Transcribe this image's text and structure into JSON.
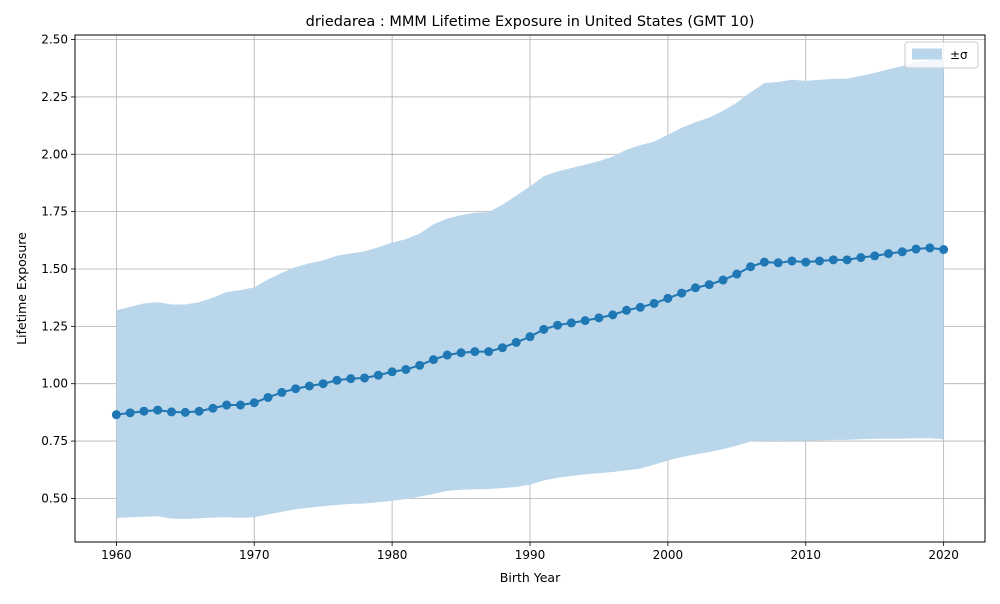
{
  "chart_data": {
    "type": "line",
    "title": "driedarea : MMM Lifetime Exposure in United States (GMT 10)",
    "xlabel": "Birth Year",
    "ylabel": "Lifetime Exposure",
    "xlim": [
      1957,
      2023
    ],
    "ylim": [
      0.31,
      2.52
    ],
    "xticks": [
      1960,
      1970,
      1980,
      1990,
      2000,
      2010,
      2020
    ],
    "xtick_labels": [
      "1960",
      "1970",
      "1980",
      "1990",
      "2000",
      "2010",
      "2020"
    ],
    "yticks": [
      0.5,
      0.75,
      1.0,
      1.25,
      1.5,
      1.75,
      2.0,
      2.25,
      2.5
    ],
    "ytick_labels": [
      "0.50",
      "0.75",
      "1.00",
      "1.25",
      "1.50",
      "1.75",
      "2.00",
      "2.25",
      "2.50"
    ],
    "grid": true,
    "legend": {
      "placement": "top-right",
      "entries": [
        "±σ"
      ]
    },
    "colors": {
      "line": "#1f77b4",
      "band": "#bad6ea",
      "grid": "#b0b0b0"
    },
    "x": [
      1960,
      1961,
      1962,
      1963,
      1964,
      1965,
      1966,
      1967,
      1968,
      1969,
      1970,
      1971,
      1972,
      1973,
      1974,
      1975,
      1976,
      1977,
      1978,
      1979,
      1980,
      1981,
      1982,
      1983,
      1984,
      1985,
      1986,
      1987,
      1988,
      1989,
      1990,
      1991,
      1992,
      1993,
      1994,
      1995,
      1996,
      1997,
      1998,
      1999,
      2000,
      2001,
      2002,
      2003,
      2004,
      2005,
      2006,
      2007,
      2008,
      2009,
      2010,
      2011,
      2012,
      2013,
      2014,
      2015,
      2016,
      2017,
      2018,
      2019,
      2020
    ],
    "series": [
      {
        "type": "line",
        "values": [
          0.865,
          0.873,
          0.88,
          0.885,
          0.877,
          0.875,
          0.88,
          0.893,
          0.907,
          0.907,
          0.917,
          0.94,
          0.962,
          0.978,
          0.99,
          1.0,
          1.015,
          1.022,
          1.025,
          1.037,
          1.052,
          1.062,
          1.08,
          1.105,
          1.125,
          1.135,
          1.14,
          1.14,
          1.157,
          1.18,
          1.205,
          1.237,
          1.255,
          1.265,
          1.275,
          1.287,
          1.3,
          1.32,
          1.333,
          1.35,
          1.372,
          1.395,
          1.418,
          1.432,
          1.452,
          1.478,
          1.51,
          1.53,
          1.527,
          1.535,
          1.53,
          1.535,
          1.54,
          1.54,
          1.55,
          1.557,
          1.567,
          1.575,
          1.587,
          1.592,
          1.585
        ]
      },
      {
        "type": "band",
        "name": "±σ",
        "upper": [
          1.32,
          1.335,
          1.35,
          1.355,
          1.345,
          1.345,
          1.355,
          1.375,
          1.4,
          1.408,
          1.42,
          1.455,
          1.483,
          1.508,
          1.525,
          1.538,
          1.558,
          1.568,
          1.577,
          1.595,
          1.615,
          1.63,
          1.655,
          1.695,
          1.72,
          1.735,
          1.745,
          1.748,
          1.78,
          1.82,
          1.86,
          1.905,
          1.925,
          1.94,
          1.955,
          1.97,
          1.99,
          2.02,
          2.04,
          2.055,
          2.085,
          2.115,
          2.14,
          2.16,
          2.19,
          2.225,
          2.27,
          2.31,
          2.315,
          2.325,
          2.32,
          2.325,
          2.328,
          2.33,
          2.342,
          2.355,
          2.37,
          2.385,
          2.4,
          2.41,
          2.42
        ],
        "lower": [
          0.415,
          0.418,
          0.42,
          0.422,
          0.412,
          0.41,
          0.413,
          0.416,
          0.418,
          0.415,
          0.418,
          0.43,
          0.442,
          0.453,
          0.46,
          0.466,
          0.472,
          0.476,
          0.478,
          0.483,
          0.49,
          0.497,
          0.507,
          0.52,
          0.533,
          0.538,
          0.54,
          0.541,
          0.545,
          0.55,
          0.56,
          0.578,
          0.59,
          0.598,
          0.605,
          0.61,
          0.615,
          0.622,
          0.63,
          0.647,
          0.665,
          0.68,
          0.692,
          0.702,
          0.715,
          0.73,
          0.748,
          0.752,
          0.75,
          0.752,
          0.752,
          0.753,
          0.755,
          0.755,
          0.758,
          0.76,
          0.76,
          0.76,
          0.762,
          0.762,
          0.758
        ]
      }
    ]
  }
}
